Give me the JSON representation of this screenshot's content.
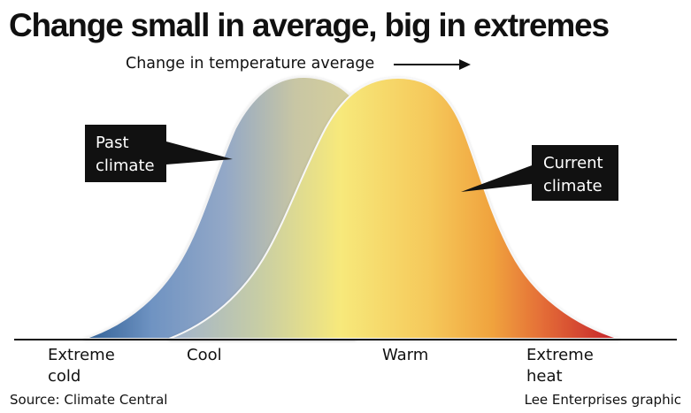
{
  "header": {
    "title": "Change small in average, big in extremes",
    "subtitle": "Change in temperature average"
  },
  "callouts": {
    "past": "Past\nclimate",
    "current": "Current\nclimate"
  },
  "axis": {
    "extreme_cold": "Extreme\ncold",
    "cool": "Cool",
    "warm": "Warm",
    "extreme_heat": "Extreme\nheat"
  },
  "footer": {
    "source": "Source: Climate Central",
    "credit": "Lee Enterprises graphic"
  },
  "colors": {
    "past_curve_start": "#3f6fa6",
    "past_curve_end": "#d7cf9a",
    "current_curve_yellow": "#f7e97b",
    "current_curve_orange": "#f0a23d",
    "current_curve_red": "#c31f2a",
    "callout_background": "#111111",
    "callout_text": "#ffffff"
  },
  "icons": {
    "subtitle_arrow": "right-arrow-icon"
  }
}
